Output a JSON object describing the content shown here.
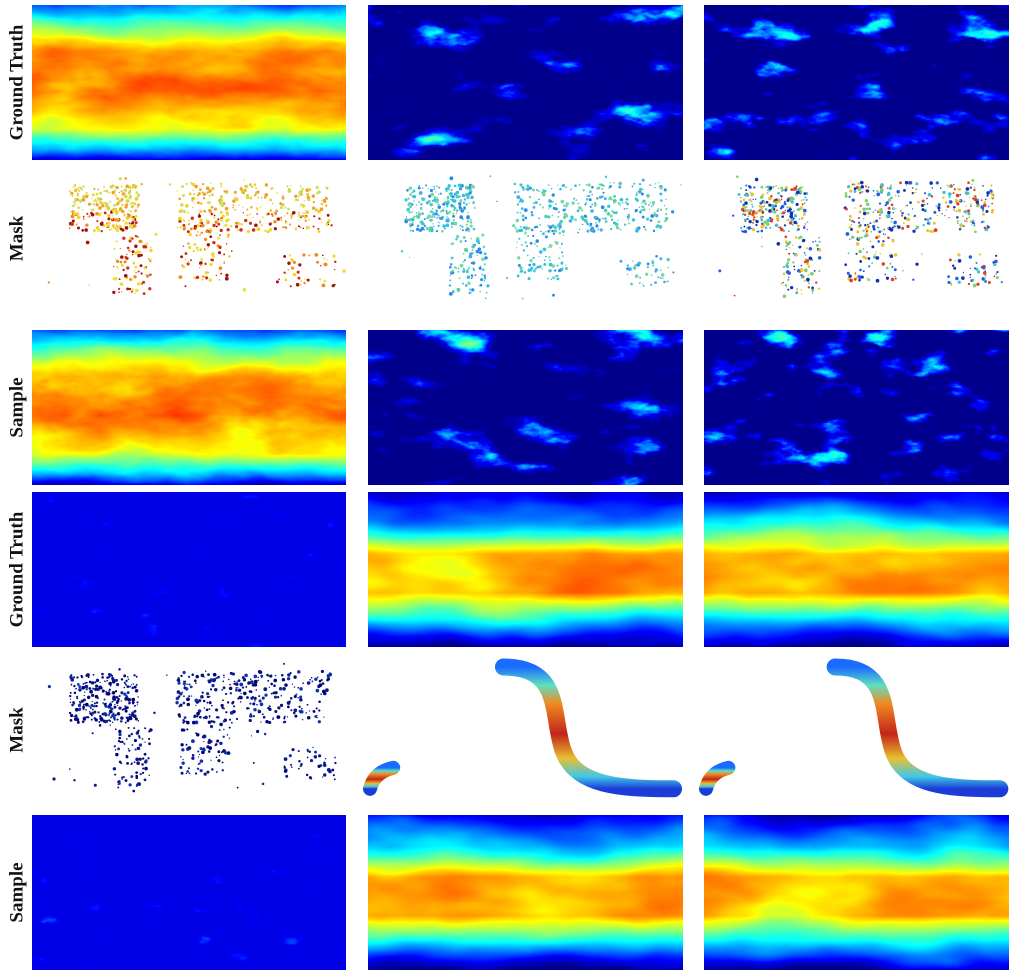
{
  "rows": [
    {
      "label": "Ground Truth"
    },
    {
      "label": "Mask"
    },
    {
      "label": "Sample"
    },
    {
      "label": "Ground Truth"
    },
    {
      "label": "Mask"
    },
    {
      "label": "Sample"
    }
  ]
}
